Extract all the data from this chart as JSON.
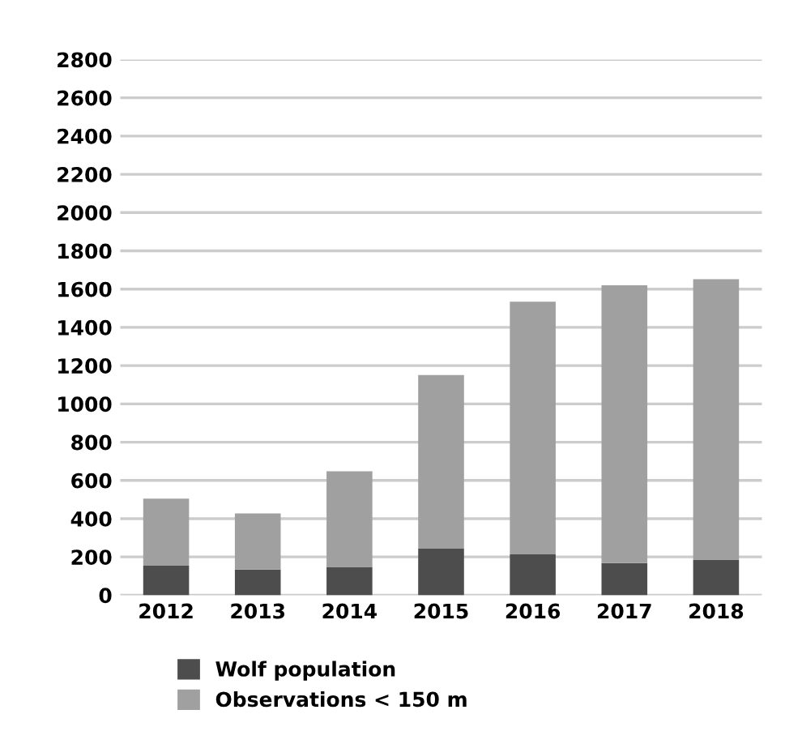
{
  "chart_data": {
    "type": "bar",
    "stacked": true,
    "categories": [
      "2012",
      "2013",
      "2014",
      "2015",
      "2016",
      "2017",
      "2018"
    ],
    "series": [
      {
        "name": "Wolf population",
        "color": "#4d4d4d",
        "values": [
          154,
          134,
          148,
          243,
          214,
          168,
          186
        ]
      },
      {
        "name": "Observations < 150 m",
        "color": "#a0a0a0",
        "values": [
          351,
          293,
          500,
          908,
          1320,
          1452,
          1466
        ]
      }
    ],
    "ylim": [
      0,
      2800
    ],
    "yticks": [
      0,
      200,
      400,
      600,
      800,
      1000,
      1200,
      1400,
      1600,
      1800,
      2000,
      2200,
      2400,
      2600,
      2800
    ],
    "grid": "y",
    "legend": "bottom left"
  }
}
